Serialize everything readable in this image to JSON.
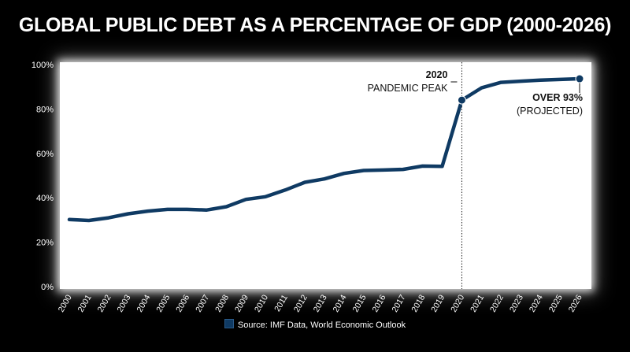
{
  "chart_data": {
    "type": "line",
    "title": "GLOBAL PUBLIC DEBT AS A PERCENTAGE OF GDP (2000-2026)",
    "x": [
      "2000",
      "2001",
      "2002",
      "2003",
      "2004",
      "2005",
      "2006",
      "2007",
      "2008",
      "2009",
      "2010",
      "2011",
      "2012",
      "2013",
      "2014",
      "2015",
      "2016",
      "2017",
      "2018",
      "2019",
      "2020",
      "2021",
      "2022",
      "2023",
      "2024",
      "2025",
      "2026"
    ],
    "series": [
      {
        "values": [
          30.2,
          29.8,
          31.0,
          32.8,
          34.0,
          34.8,
          34.8,
          34.5,
          36.0,
          39.3,
          40.5,
          43.5,
          47.0,
          48.5,
          51.0,
          52.3,
          52.5,
          52.8,
          54.3,
          54.2,
          84.0,
          89.5,
          92.0,
          92.5,
          93.0,
          93.3,
          93.6
        ]
      }
    ],
    "ylim": [
      0,
      100
    ],
    "yticks": [
      "0%",
      "20%",
      "40%",
      "60%",
      "80%",
      "100%"
    ],
    "ytick_values": [
      0,
      20,
      40,
      60,
      80,
      100
    ],
    "grid": false,
    "line_color": "#0f3a63",
    "annotations": [
      {
        "x": "2020",
        "value": 84.0,
        "year_label": "2020",
        "text": "PANDEMIC PEAK",
        "marker": true,
        "vline": true
      },
      {
        "x": "2026",
        "value": 93.6,
        "line1": "OVER 93%",
        "line2": "(PROJECTED)",
        "marker": true
      }
    ],
    "legend": {
      "label": "Source: IMF Data, World Economic Outlook",
      "placement": "bottom-center"
    }
  }
}
